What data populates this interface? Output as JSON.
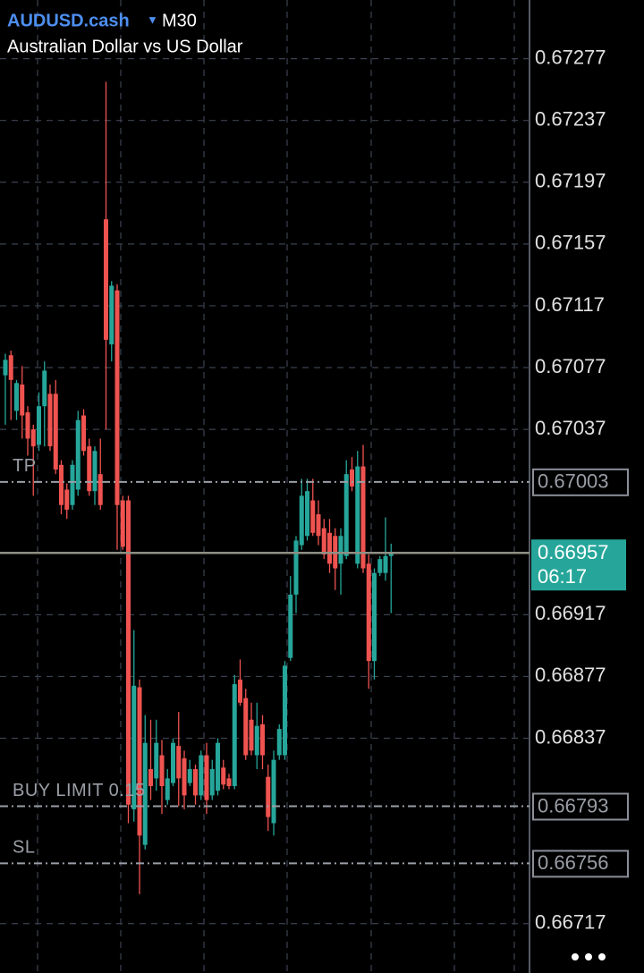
{
  "chart_data": {
    "type": "candlestick",
    "title": "AUDUSD.cash",
    "timeframe": "M30",
    "subtitle": "Australian Dollar vs US Dollar",
    "ylim": [
      0.66685,
      0.67315
    ],
    "yticks": [
      0.67277,
      0.67237,
      0.67197,
      0.67157,
      0.67117,
      0.67077,
      0.67037,
      0.66917,
      0.66877,
      0.66837,
      0.66717
    ],
    "grid": true,
    "up_color": "#26a69a",
    "down_color": "#ef5350",
    "open": [
      0.67072,
      0.67085,
      0.67049,
      0.67066,
      0.67048,
      0.67037,
      0.67027,
      0.67052,
      0.6706,
      0.6706,
      0.67014,
      0.66998,
      0.66988,
      0.66998,
      0.67046,
      0.67026,
      0.66997,
      0.67008,
      0.67173,
      0.67092,
      0.67127,
      0.66991,
      0.66991,
      0.66791,
      0.6687,
      0.66768,
      0.66817,
      0.66811,
      0.66826,
      0.66797,
      0.66808,
      0.66832,
      0.66824,
      0.66808,
      0.66817,
      0.668,
      0.66826,
      0.668,
      0.66803,
      0.66818,
      0.66811,
      0.66806,
      0.66875,
      0.66863,
      0.66849,
      0.66826,
      0.66846,
      0.66812,
      0.66782,
      0.66826,
      0.66826,
      0.66889,
      0.6693,
      0.66962,
      0.66968,
      0.66991,
      0.66982,
      0.66973,
      0.6697,
      0.66968,
      0.6695,
      0.66955,
      0.67011,
      0.6695,
      0.67013,
      0.6695,
      0.66887,
      0.66944,
      0.66944,
      0.66955
    ],
    "high": [
      0.67086,
      0.67088,
      0.67069,
      0.67078,
      0.67052,
      0.6704,
      0.67061,
      0.67081,
      0.67066,
      0.67069,
      0.67017,
      0.67002,
      0.67017,
      0.67049,
      0.6705,
      0.67031,
      0.67026,
      0.67031,
      0.67262,
      0.67133,
      0.67131,
      0.66994,
      0.66994,
      0.66907,
      0.66875,
      0.66852,
      0.66849,
      0.66849,
      0.66836,
      0.66817,
      0.66837,
      0.66854,
      0.66829,
      0.66823,
      0.6682,
      0.66829,
      0.66834,
      0.66823,
      0.66837,
      0.66823,
      0.66814,
      0.66878,
      0.66888,
      0.66869,
      0.6686,
      0.6686,
      0.66852,
      0.6682,
      0.66829,
      0.66846,
      0.66887,
      0.66942,
      0.66968,
      0.67005,
      0.67005,
      0.67005,
      0.66991,
      0.66979,
      0.66979,
      0.66973,
      0.66973,
      0.67017,
      0.67019,
      0.67023,
      0.67027,
      0.66956,
      0.66947,
      0.66955,
      0.6698,
      0.66963
    ],
    "low": [
      0.6704,
      0.67043,
      0.67043,
      0.67031,
      0.6702,
      0.66994,
      0.67023,
      0.67026,
      0.67023,
      0.67008,
      0.66982,
      0.66979,
      0.66985,
      0.66994,
      0.6702,
      0.66994,
      0.66988,
      0.66985,
      0.67037,
      0.67081,
      0.66959,
      0.66959,
      0.66782,
      0.66783,
      0.66736,
      0.66765,
      0.66797,
      0.66803,
      0.66788,
      0.66794,
      0.66806,
      0.66793,
      0.66791,
      0.66806,
      0.66794,
      0.66797,
      0.66788,
      0.66797,
      0.668,
      0.66804,
      0.66804,
      0.66804,
      0.66858,
      0.66823,
      0.66826,
      0.66817,
      0.66817,
      0.66777,
      0.66774,
      0.66823,
      0.66823,
      0.66887,
      0.66918,
      0.66959,
      0.66965,
      0.66968,
      0.66962,
      0.66953,
      0.66944,
      0.66933,
      0.6693,
      0.66953,
      0.66997,
      0.66947,
      0.66944,
      0.66869,
      0.66875,
      0.66942,
      0.66939,
      0.66918
    ],
    "close": [
      0.67082,
      0.67069,
      0.67067,
      0.67046,
      0.67031,
      0.67026,
      0.67052,
      0.67075,
      0.67026,
      0.67011,
      0.66988,
      0.66985,
      0.67014,
      0.67043,
      0.67023,
      0.66997,
      0.67023,
      0.66988,
      0.67095,
      0.6713,
      0.66988,
      0.66961,
      0.66794,
      0.66871,
      0.66774,
      0.66834,
      0.66806,
      0.66834,
      0.66806,
      0.66811,
      0.66834,
      0.66811,
      0.668,
      0.66817,
      0.668,
      0.66826,
      0.66797,
      0.66817,
      0.66834,
      0.66807,
      0.66806,
      0.66872,
      0.6686,
      0.66826,
      0.66829,
      0.66845,
      0.66826,
      0.66786,
      0.66823,
      0.66843,
      0.66884,
      0.6693,
      0.66965,
      0.66994,
      0.66997,
      0.6697,
      0.66968,
      0.66956,
      0.6695,
      0.66947,
      0.66968,
      0.67008,
      0.67,
      0.67013,
      0.66947,
      0.66887,
      0.66944,
      0.66953,
      0.66955,
      0.66957
    ],
    "current_price": 0.66957,
    "countdown": "06:17",
    "order_lines": [
      {
        "label": "TP",
        "value": 0.67003
      },
      {
        "label": "BUY LIMIT 0.15",
        "value": 0.66793
      },
      {
        "label": "SL",
        "value": 0.66756
      }
    ]
  }
}
